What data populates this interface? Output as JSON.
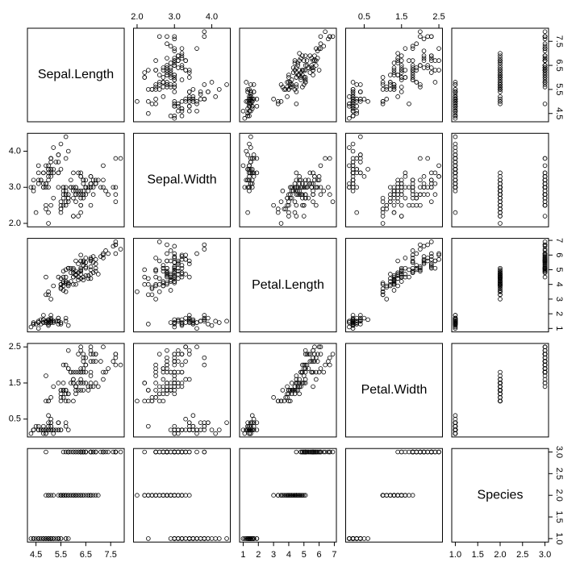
{
  "chart_data": {
    "type": "scatter_matrix",
    "point_color": "#000000",
    "variables": [
      {
        "name": "Sepal.Length",
        "lim": [
          4.156,
          8.044
        ],
        "ticks": [
          4.5,
          5.5,
          6.5,
          7.5
        ],
        "values": [
          5.1,
          4.9,
          4.7,
          4.6,
          5.0,
          5.4,
          4.6,
          5.0,
          4.4,
          4.9,
          5.4,
          4.8,
          4.8,
          4.3,
          5.8,
          5.7,
          5.4,
          5.1,
          5.7,
          5.1,
          5.4,
          5.1,
          4.6,
          5.1,
          4.8,
          5.0,
          5.0,
          5.2,
          5.2,
          4.7,
          4.8,
          5.4,
          5.2,
          5.5,
          4.9,
          5.0,
          5.5,
          4.9,
          4.4,
          5.1,
          5.0,
          4.5,
          4.4,
          5.0,
          5.1,
          4.8,
          5.1,
          4.6,
          5.3,
          5.0,
          7.0,
          6.4,
          6.9,
          5.5,
          6.5,
          5.7,
          6.3,
          4.9,
          6.6,
          5.2,
          5.0,
          5.9,
          6.0,
          6.1,
          5.6,
          6.7,
          5.6,
          5.8,
          6.2,
          5.6,
          5.9,
          6.1,
          6.3,
          6.1,
          6.4,
          6.6,
          6.8,
          6.7,
          6.0,
          5.7,
          5.5,
          5.5,
          5.8,
          6.0,
          5.4,
          6.0,
          6.7,
          6.3,
          5.6,
          5.5,
          5.5,
          6.1,
          5.8,
          5.0,
          5.6,
          5.7,
          5.7,
          6.2,
          5.1,
          5.7,
          6.3,
          5.8,
          7.1,
          6.3,
          6.5,
          7.6,
          4.9,
          7.3,
          6.7,
          7.2,
          6.5,
          6.4,
          6.8,
          5.7,
          5.8,
          6.4,
          6.5,
          7.7,
          7.7,
          6.0,
          6.9,
          5.6,
          7.7,
          6.3,
          6.7,
          7.2,
          6.2,
          6.1,
          6.4,
          7.2,
          7.4,
          7.9,
          6.4,
          6.3,
          6.1,
          7.7,
          6.3,
          6.4,
          6.0,
          6.9,
          6.7,
          6.9,
          5.8,
          6.8,
          6.7,
          6.7,
          6.3,
          6.5,
          6.2,
          5.9
        ]
      },
      {
        "name": "Sepal.Width",
        "lim": [
          1.904,
          4.496
        ],
        "ticks": [
          {
            "value": 2,
            "label": "2.0"
          },
          {
            "value": 3,
            "label": "3.0"
          },
          {
            "value": 4,
            "label": "4.0"
          }
        ],
        "values": [
          3.5,
          3.0,
          3.2,
          3.1,
          3.6,
          3.9,
          3.4,
          3.4,
          2.9,
          3.1,
          3.7,
          3.4,
          3.0,
          3.0,
          4.0,
          4.4,
          3.9,
          3.5,
          3.8,
          3.8,
          3.4,
          3.7,
          3.6,
          3.3,
          3.4,
          3.0,
          3.4,
          3.5,
          3.4,
          3.2,
          3.1,
          3.4,
          4.1,
          4.2,
          3.1,
          3.2,
          3.5,
          3.6,
          3.0,
          3.4,
          3.5,
          2.3,
          3.2,
          3.5,
          3.8,
          3.0,
          3.8,
          3.2,
          3.7,
          3.3,
          3.2,
          3.2,
          3.1,
          2.3,
          2.8,
          2.8,
          3.3,
          2.4,
          2.9,
          2.7,
          2.0,
          3.0,
          2.2,
          2.9,
          2.9,
          3.1,
          3.0,
          2.7,
          2.2,
          2.5,
          3.2,
          2.8,
          2.5,
          2.8,
          2.9,
          3.0,
          2.8,
          3.0,
          2.9,
          2.6,
          2.4,
          2.4,
          2.7,
          2.7,
          3.0,
          3.4,
          3.1,
          2.3,
          3.0,
          2.5,
          2.6,
          3.0,
          2.6,
          2.3,
          2.7,
          3.0,
          2.9,
          2.9,
          2.5,
          2.8,
          3.3,
          2.7,
          3.0,
          2.9,
          3.0,
          3.0,
          2.5,
          2.9,
          2.5,
          3.6,
          3.2,
          2.7,
          3.0,
          2.5,
          2.8,
          3.2,
          3.0,
          3.8,
          2.6,
          2.2,
          3.2,
          2.8,
          2.8,
          2.7,
          3.3,
          3.2,
          2.8,
          3.0,
          2.8,
          3.0,
          2.8,
          3.8,
          2.8,
          2.8,
          2.6,
          3.0,
          3.4,
          3.1,
          3.0,
          3.1,
          3.1,
          3.1,
          2.7,
          3.2,
          3.3,
          3.0,
          2.5,
          3.0,
          3.4,
          3.0
        ]
      },
      {
        "name": "Petal.Length",
        "lim": [
          0.764,
          7.136
        ],
        "ticks": [
          1,
          2,
          3,
          4,
          5,
          6,
          7
        ],
        "values": [
          1.4,
          1.4,
          1.3,
          1.5,
          1.4,
          1.7,
          1.4,
          1.5,
          1.4,
          1.5,
          1.5,
          1.6,
          1.4,
          1.1,
          1.2,
          1.5,
          1.3,
          1.4,
          1.7,
          1.5,
          1.7,
          1.5,
          1.0,
          1.7,
          1.9,
          1.6,
          1.6,
          1.5,
          1.4,
          1.6,
          1.6,
          1.5,
          1.5,
          1.4,
          1.5,
          1.2,
          1.3,
          1.4,
          1.3,
          1.5,
          1.3,
          1.3,
          1.3,
          1.6,
          1.9,
          1.4,
          1.6,
          1.4,
          1.5,
          1.4,
          4.7,
          4.5,
          4.9,
          4.0,
          4.6,
          4.5,
          4.7,
          3.3,
          4.6,
          3.9,
          3.5,
          4.2,
          4.0,
          4.7,
          3.6,
          4.4,
          4.5,
          4.1,
          4.5,
          3.9,
          4.8,
          4.0,
          4.9,
          4.7,
          4.3,
          4.4,
          4.8,
          5.0,
          4.5,
          3.5,
          3.8,
          3.7,
          3.9,
          5.1,
          4.5,
          4.5,
          4.7,
          4.4,
          4.1,
          4.0,
          4.4,
          4.6,
          4.0,
          3.3,
          4.2,
          4.2,
          4.2,
          4.3,
          3.0,
          4.1,
          6.0,
          5.1,
          5.9,
          5.6,
          5.8,
          6.6,
          4.5,
          6.3,
          5.8,
          6.1,
          5.1,
          5.3,
          5.5,
          5.0,
          5.1,
          5.3,
          5.5,
          6.7,
          6.9,
          5.0,
          5.7,
          4.9,
          6.7,
          4.9,
          5.7,
          6.0,
          4.8,
          4.9,
          5.6,
          5.8,
          6.1,
          6.4,
          5.6,
          5.1,
          5.6,
          6.1,
          5.6,
          5.5,
          4.8,
          5.4,
          5.6,
          5.1,
          5.1,
          5.9,
          5.7,
          5.2,
          5.0,
          5.2,
          5.4,
          5.1
        ]
      },
      {
        "name": "Petal.Width",
        "lim": [
          0.004,
          2.596
        ],
        "ticks": [
          0.5,
          1.5,
          2.5
        ],
        "values": [
          0.2,
          0.2,
          0.2,
          0.2,
          0.2,
          0.4,
          0.3,
          0.2,
          0.2,
          0.1,
          0.2,
          0.2,
          0.1,
          0.1,
          0.2,
          0.4,
          0.4,
          0.3,
          0.3,
          0.3,
          0.2,
          0.4,
          0.2,
          0.5,
          0.2,
          0.2,
          0.4,
          0.2,
          0.2,
          0.2,
          0.2,
          0.4,
          0.1,
          0.2,
          0.2,
          0.2,
          0.2,
          0.1,
          0.2,
          0.2,
          0.3,
          0.3,
          0.2,
          0.6,
          0.4,
          0.3,
          0.2,
          0.2,
          0.2,
          0.2,
          1.4,
          1.5,
          1.5,
          1.3,
          1.5,
          1.3,
          1.6,
          1.0,
          1.3,
          1.4,
          1.0,
          1.5,
          1.0,
          1.4,
          1.3,
          1.4,
          1.5,
          1.0,
          1.5,
          1.1,
          1.8,
          1.3,
          1.5,
          1.2,
          1.3,
          1.4,
          1.4,
          1.7,
          1.5,
          1.0,
          1.1,
          1.0,
          1.2,
          1.6,
          1.5,
          1.6,
          1.5,
          1.3,
          1.3,
          1.3,
          1.2,
          1.4,
          1.2,
          1.0,
          1.3,
          1.2,
          1.3,
          1.3,
          1.1,
          1.3,
          2.5,
          1.9,
          2.1,
          1.8,
          2.2,
          2.1,
          1.7,
          1.8,
          1.8,
          2.5,
          2.0,
          1.9,
          2.1,
          2.0,
          2.4,
          2.3,
          1.8,
          2.2,
          2.3,
          1.5,
          2.3,
          2.0,
          2.0,
          1.8,
          2.1,
          1.8,
          1.8,
          1.8,
          2.1,
          1.6,
          1.9,
          2.0,
          2.2,
          1.5,
          1.4,
          2.3,
          2.4,
          1.8,
          1.8,
          2.1,
          2.4,
          2.3,
          1.9,
          2.3,
          2.5,
          2.3,
          1.9,
          2.0,
          2.3,
          1.8
        ]
      },
      {
        "name": "Species",
        "lim": [
          0.92,
          3.08
        ],
        "ticks": [
          {
            "value": 1,
            "label": "1.0"
          },
          1.5,
          {
            "value": 2,
            "label": "2.0"
          },
          2.5,
          {
            "value": 3,
            "label": "3.0"
          }
        ],
        "values": [
          1,
          1,
          1,
          1,
          1,
          1,
          1,
          1,
          1,
          1,
          1,
          1,
          1,
          1,
          1,
          1,
          1,
          1,
          1,
          1,
          1,
          1,
          1,
          1,
          1,
          1,
          1,
          1,
          1,
          1,
          1,
          1,
          1,
          1,
          1,
          1,
          1,
          1,
          1,
          1,
          1,
          1,
          1,
          1,
          1,
          1,
          1,
          1,
          1,
          1,
          2,
          2,
          2,
          2,
          2,
          2,
          2,
          2,
          2,
          2,
          2,
          2,
          2,
          2,
          2,
          2,
          2,
          2,
          2,
          2,
          2,
          2,
          2,
          2,
          2,
          2,
          2,
          2,
          2,
          2,
          2,
          2,
          2,
          2,
          2,
          2,
          2,
          2,
          2,
          2,
          2,
          2,
          2,
          2,
          2,
          2,
          2,
          2,
          2,
          2,
          3,
          3,
          3,
          3,
          3,
          3,
          3,
          3,
          3,
          3,
          3,
          3,
          3,
          3,
          3,
          3,
          3,
          3,
          3,
          3,
          3,
          3,
          3,
          3,
          3,
          3,
          3,
          3,
          3,
          3,
          3,
          3,
          3,
          3,
          3,
          3,
          3,
          3,
          3,
          3,
          3,
          3,
          3,
          3,
          3,
          3,
          3,
          3,
          3,
          3
        ]
      }
    ]
  }
}
